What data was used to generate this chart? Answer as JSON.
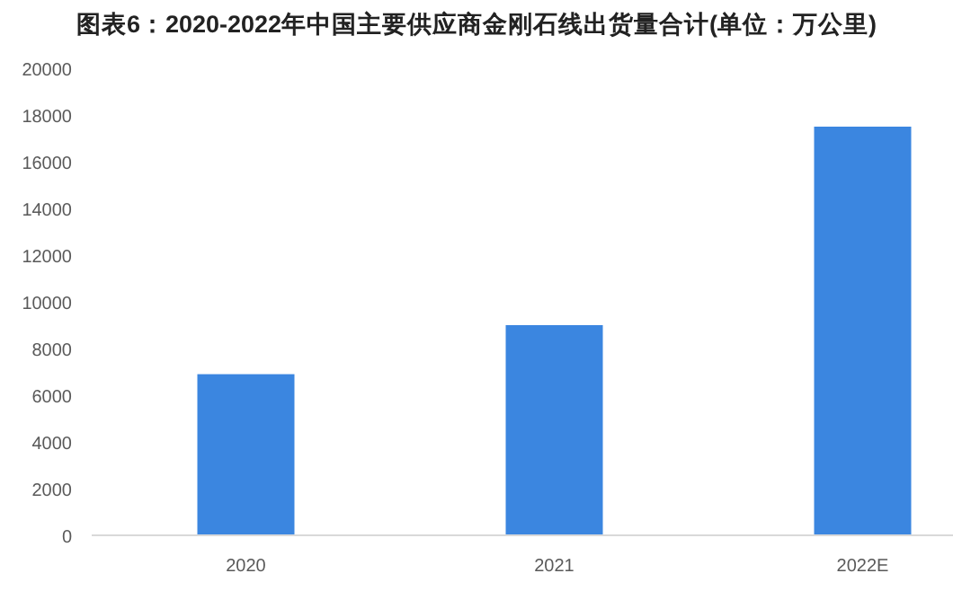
{
  "chart_data": {
    "type": "bar",
    "title": "图表6：2020-2022年中国主要供应商金刚石线出货量合计(单位：万公里)",
    "categories": [
      "2020",
      "2021",
      "2022E"
    ],
    "values": [
      6900,
      9000,
      17500
    ],
    "color": "#3b86e0",
    "ylim": [
      0,
      20000
    ],
    "yticks": [
      0,
      2000,
      4000,
      6000,
      8000,
      10000,
      12000,
      14000,
      16000,
      18000,
      20000
    ],
    "grid": false
  }
}
